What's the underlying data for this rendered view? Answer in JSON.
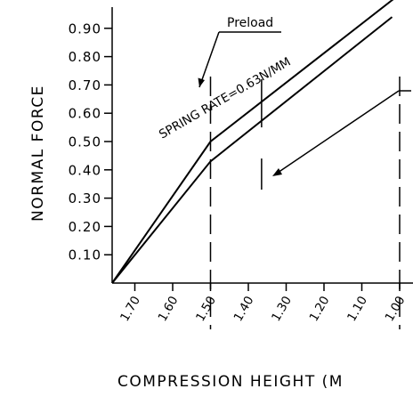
{
  "chart_data": {
    "type": "line",
    "title": "",
    "xlabel": "COMPRESSION HEIGHT (M",
    "ylabel": "NORMAL FORCE",
    "x_reversed": true,
    "xlim": [
      1.76,
      1.0
    ],
    "ylim": [
      0.0,
      1.0
    ],
    "x_ticks": [
      1.7,
      1.6,
      1.5,
      1.4,
      1.3,
      1.2,
      1.1,
      1.0
    ],
    "x_tick_labels": [
      "1.70",
      "1.60",
      "1.50",
      "1.40",
      "1.30",
      "1.20",
      "1.10",
      "1.00"
    ],
    "y_ticks": [
      0.1,
      0.2,
      0.3,
      0.4,
      0.5,
      0.6,
      0.7,
      0.8,
      0.9
    ],
    "y_tick_labels": [
      "0.10",
      "0.20",
      "0.30",
      "0.40",
      "0.50",
      "0.60",
      "0.70",
      "0.80",
      "0.90"
    ],
    "grid": false,
    "series": [
      {
        "x": [
          1.76,
          1.5,
          1.01
        ],
        "y": [
          0.0,
          0.5,
          1.01
        ]
      },
      {
        "x": [
          1.76,
          1.5,
          1.02
        ],
        "y": [
          0.0,
          0.43,
          0.94
        ]
      }
    ],
    "dashed_verticals": [
      1.5,
      1.0
    ],
    "marker_segment": {
      "x": 1.365,
      "y_top": 0.72,
      "y_bottom": 0.55
    },
    "lower_marker_segment": {
      "x": 1.365,
      "y_top": 0.44,
      "y_bottom": 0.33
    },
    "annotations": {
      "preload": "Preload",
      "spring_rate": "SPRING RATE=0.63N/MM"
    }
  }
}
